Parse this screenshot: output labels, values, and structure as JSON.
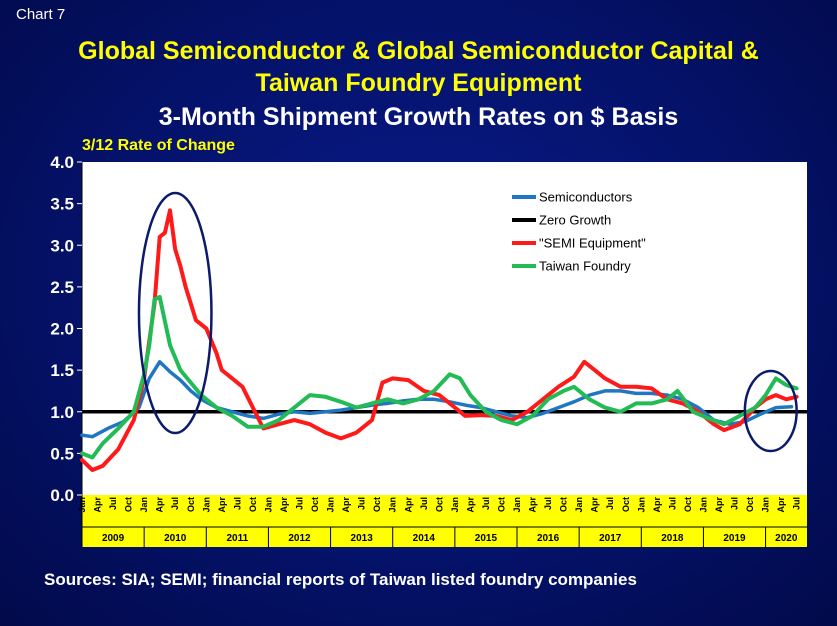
{
  "header": {
    "chart_number": "Chart 7",
    "title_line1": "Global Semiconductor & Global Semiconductor Capital &",
    "title_line2": "Taiwan Foundry Equipment",
    "subtitle": "3-Month Shipment Growth Rates on $ Basis",
    "y_axis_label": "3/12 Rate of Change"
  },
  "footer": {
    "source": "Sources: SIA; SEMI; financial reports of Taiwan listed foundry companies"
  },
  "colors": {
    "plot_bg": "#ffffff",
    "axis_band": "#ffff00",
    "semiconductors": "#1f77c4",
    "zero_growth": "#000000",
    "semi_equipment": "#ff1a1a",
    "taiwan_foundry": "#22bb55",
    "highlight_ellipse": "#0b1a6a"
  },
  "chart_data": {
    "type": "line",
    "ylim": [
      0.0,
      4.0
    ],
    "yticks": [
      "0.0",
      "0.5",
      "1.0",
      "1.5",
      "2.0",
      "2.5",
      "3.0",
      "3.5",
      "4.0"
    ],
    "month_labels": [
      "Jan",
      "Apr",
      "Jul",
      "Oct"
    ],
    "years": [
      "2009",
      "2010",
      "2011",
      "2012",
      "2013",
      "2014",
      "2015",
      "2016",
      "2017",
      "2018",
      "2019",
      "2020"
    ],
    "x_start": "2009-01",
    "x_end": "2020-09",
    "legend": [
      "Semiconductors",
      "Zero Growth",
      "\"SEMI Equipment\"",
      "Taiwan Foundry"
    ],
    "legend_position": "top-right",
    "reference_line": 1.0,
    "highlights": [
      {
        "period": "2009-12 to 2011-02"
      },
      {
        "period": "2019-09 to 2020-07"
      }
    ],
    "series": [
      {
        "name": "Semiconductors",
        "color": "#1f77c4",
        "points": [
          [
            "2009-01",
            0.72
          ],
          [
            "2009-03",
            0.7
          ],
          [
            "2009-06",
            0.8
          ],
          [
            "2009-09",
            0.88
          ],
          [
            "2009-12",
            1.05
          ],
          [
            "2010-02",
            1.4
          ],
          [
            "2010-04",
            1.6
          ],
          [
            "2010-06",
            1.48
          ],
          [
            "2010-08",
            1.38
          ],
          [
            "2010-10",
            1.25
          ],
          [
            "2010-12",
            1.15
          ],
          [
            "2011-03",
            1.05
          ],
          [
            "2011-06",
            1.0
          ],
          [
            "2011-09",
            0.95
          ],
          [
            "2011-12",
            0.92
          ],
          [
            "2012-03",
            0.97
          ],
          [
            "2012-06",
            1.0
          ],
          [
            "2012-09",
            0.98
          ],
          [
            "2012-12",
            1.0
          ],
          [
            "2013-03",
            1.02
          ],
          [
            "2013-06",
            1.05
          ],
          [
            "2013-09",
            1.08
          ],
          [
            "2013-12",
            1.1
          ],
          [
            "2014-03",
            1.13
          ],
          [
            "2014-06",
            1.15
          ],
          [
            "2014-09",
            1.15
          ],
          [
            "2014-12",
            1.12
          ],
          [
            "2015-03",
            1.08
          ],
          [
            "2015-06",
            1.05
          ],
          [
            "2015-09",
            1.0
          ],
          [
            "2015-12",
            0.95
          ],
          [
            "2016-03",
            0.93
          ],
          [
            "2016-06",
            0.98
          ],
          [
            "2016-09",
            1.05
          ],
          [
            "2016-12",
            1.12
          ],
          [
            "2017-03",
            1.2
          ],
          [
            "2017-06",
            1.25
          ],
          [
            "2017-09",
            1.25
          ],
          [
            "2017-12",
            1.22
          ],
          [
            "2018-03",
            1.22
          ],
          [
            "2018-06",
            1.2
          ],
          [
            "2018-09",
            1.15
          ],
          [
            "2018-12",
            1.05
          ],
          [
            "2019-03",
            0.9
          ],
          [
            "2019-06",
            0.85
          ],
          [
            "2019-09",
            0.88
          ],
          [
            "2019-12",
            0.97
          ],
          [
            "2020-03",
            1.05
          ],
          [
            "2020-06",
            1.06
          ]
        ]
      },
      {
        "name": "\"SEMI Equipment\"",
        "color": "#ff1a1a",
        "points": [
          [
            "2009-01",
            0.42
          ],
          [
            "2009-03",
            0.3
          ],
          [
            "2009-05",
            0.35
          ],
          [
            "2009-08",
            0.55
          ],
          [
            "2009-11",
            0.9
          ],
          [
            "2010-01",
            1.4
          ],
          [
            "2010-03",
            2.3
          ],
          [
            "2010-04",
            3.1
          ],
          [
            "2010-05",
            3.15
          ],
          [
            "2010-06",
            3.42
          ],
          [
            "2010-07",
            2.95
          ],
          [
            "2010-08",
            2.75
          ],
          [
            "2010-09",
            2.5
          ],
          [
            "2010-10",
            2.3
          ],
          [
            "2010-11",
            2.1
          ],
          [
            "2011-01",
            2.0
          ],
          [
            "2011-03",
            1.7
          ],
          [
            "2011-04",
            1.5
          ],
          [
            "2011-06",
            1.4
          ],
          [
            "2011-08",
            1.3
          ],
          [
            "2011-10",
            1.05
          ],
          [
            "2011-12",
            0.8
          ],
          [
            "2012-03",
            0.85
          ],
          [
            "2012-06",
            0.9
          ],
          [
            "2012-09",
            0.85
          ],
          [
            "2012-12",
            0.75
          ],
          [
            "2013-03",
            0.68
          ],
          [
            "2013-06",
            0.75
          ],
          [
            "2013-09",
            0.9
          ],
          [
            "2013-11",
            1.35
          ],
          [
            "2014-01",
            1.4
          ],
          [
            "2014-04",
            1.38
          ],
          [
            "2014-07",
            1.25
          ],
          [
            "2014-10",
            1.2
          ],
          [
            "2015-01",
            1.05
          ],
          [
            "2015-03",
            0.95
          ],
          [
            "2015-06",
            0.96
          ],
          [
            "2015-09",
            0.95
          ],
          [
            "2015-12",
            0.9
          ],
          [
            "2016-03",
            1.0
          ],
          [
            "2016-06",
            1.15
          ],
          [
            "2016-09",
            1.3
          ],
          [
            "2016-12",
            1.42
          ],
          [
            "2017-02",
            1.6
          ],
          [
            "2017-04",
            1.5
          ],
          [
            "2017-06",
            1.4
          ],
          [
            "2017-09",
            1.3
          ],
          [
            "2017-12",
            1.3
          ],
          [
            "2018-03",
            1.28
          ],
          [
            "2018-06",
            1.15
          ],
          [
            "2018-09",
            1.1
          ],
          [
            "2018-12",
            1.0
          ],
          [
            "2019-03",
            0.85
          ],
          [
            "2019-05",
            0.78
          ],
          [
            "2019-08",
            0.85
          ],
          [
            "2019-11",
            1.05
          ],
          [
            "2020-01",
            1.15
          ],
          [
            "2020-03",
            1.2
          ],
          [
            "2020-05",
            1.15
          ],
          [
            "2020-07",
            1.18
          ]
        ]
      },
      {
        "name": "Taiwan Foundry",
        "color": "#22bb55",
        "points": [
          [
            "2009-01",
            0.5
          ],
          [
            "2009-03",
            0.45
          ],
          [
            "2009-05",
            0.62
          ],
          [
            "2009-08",
            0.8
          ],
          [
            "2009-11",
            1.0
          ],
          [
            "2010-01",
            1.45
          ],
          [
            "2010-02",
            1.8
          ],
          [
            "2010-03",
            2.35
          ],
          [
            "2010-04",
            2.38
          ],
          [
            "2010-06",
            1.8
          ],
          [
            "2010-08",
            1.5
          ],
          [
            "2010-10",
            1.35
          ],
          [
            "2010-12",
            1.2
          ],
          [
            "2011-03",
            1.05
          ],
          [
            "2011-06",
            0.95
          ],
          [
            "2011-09",
            0.82
          ],
          [
            "2011-12",
            0.82
          ],
          [
            "2012-03",
            0.9
          ],
          [
            "2012-06",
            1.05
          ],
          [
            "2012-09",
            1.2
          ],
          [
            "2012-12",
            1.18
          ],
          [
            "2013-03",
            1.12
          ],
          [
            "2013-06",
            1.05
          ],
          [
            "2013-09",
            1.1
          ],
          [
            "2013-12",
            1.15
          ],
          [
            "2014-03",
            1.1
          ],
          [
            "2014-06",
            1.15
          ],
          [
            "2014-09",
            1.25
          ],
          [
            "2014-12",
            1.45
          ],
          [
            "2015-02",
            1.4
          ],
          [
            "2015-04",
            1.2
          ],
          [
            "2015-07",
            1.0
          ],
          [
            "2015-10",
            0.9
          ],
          [
            "2016-01",
            0.85
          ],
          [
            "2016-04",
            0.95
          ],
          [
            "2016-07",
            1.15
          ],
          [
            "2016-10",
            1.25
          ],
          [
            "2016-12",
            1.3
          ],
          [
            "2017-03",
            1.15
          ],
          [
            "2017-06",
            1.05
          ],
          [
            "2017-09",
            1.0
          ],
          [
            "2017-12",
            1.1
          ],
          [
            "2018-03",
            1.1
          ],
          [
            "2018-06",
            1.15
          ],
          [
            "2018-08",
            1.25
          ],
          [
            "2018-11",
            1.0
          ],
          [
            "2019-02",
            0.92
          ],
          [
            "2019-05",
            0.85
          ],
          [
            "2019-08",
            0.95
          ],
          [
            "2019-11",
            1.05
          ],
          [
            "2020-01",
            1.2
          ],
          [
            "2020-03",
            1.4
          ],
          [
            "2020-05",
            1.32
          ],
          [
            "2020-07",
            1.28
          ]
        ]
      }
    ]
  }
}
